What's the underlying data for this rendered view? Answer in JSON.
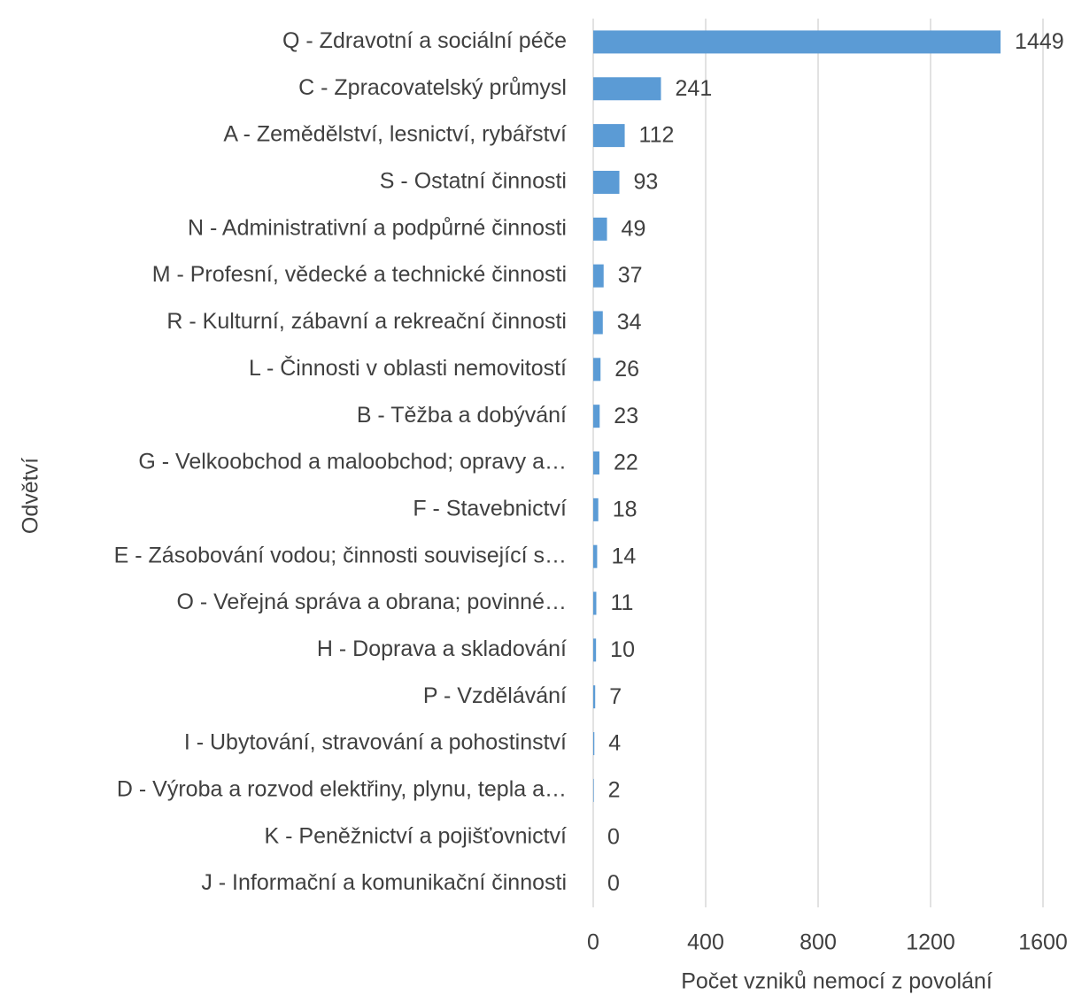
{
  "chart_data": {
    "type": "bar",
    "orientation": "horizontal",
    "x_label": "Počet vzniků nemocí z povolání",
    "y_label": "Odvětví",
    "categories": [
      "Q - Zdravotní a sociální péče",
      "C - Zpracovatelský průmysl",
      "A - Zemědělství, lesnictví, rybářství",
      "S - Ostatní činnosti",
      "N - Administrativní a podpůrné činnosti",
      "M - Profesní, vědecké a technické činnosti",
      "R - Kulturní, zábavní a rekreační činnosti",
      "L - Činnosti v oblasti nemovitostí",
      "B - Těžba a dobývání",
      "G - Velkoobchod a maloobchod; opravy a…",
      "F - Stavebnictví",
      "E - Zásobování vodou; činnosti související s…",
      "O - Veřejná správa a obrana; povinné…",
      "H - Doprava a skladování",
      "P - Vzdělávání",
      "I - Ubytování, stravování a pohostinství",
      "D - Výroba a rozvod elektřiny, plynu, tepla a…",
      "K - Peněžnictví a pojišťovnictví",
      "J - Informační a komunikační činnosti"
    ],
    "values": [
      1449,
      241,
      112,
      93,
      49,
      37,
      34,
      26,
      23,
      22,
      18,
      14,
      11,
      10,
      7,
      4,
      2,
      0,
      0
    ],
    "color": "#5b9bd5",
    "xlim": [
      0,
      1600
    ],
    "xticks": [
      0,
      400,
      800,
      1200,
      1600
    ],
    "grid": true
  }
}
